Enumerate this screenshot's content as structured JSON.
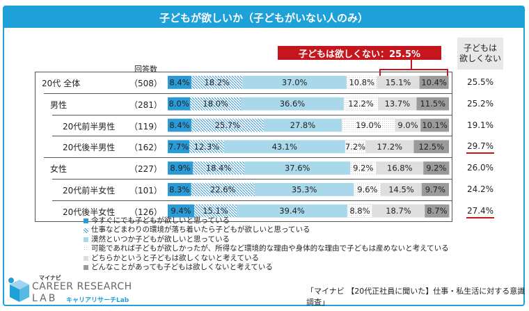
{
  "title": "子どもが欲しいか（子どもがいない人のみ）",
  "callout": "子どもは欲しくない：25.5%",
  "side_header": [
    "子どもは",
    "欲しくない"
  ],
  "respondent_header": "回答数",
  "source": "「マイナビ 【20代正社員に聞いた】仕事・私生活に対する意識調査」",
  "logo": {
    "brand": "マイナビ",
    "main": "CAREER RESEARCH",
    "lab": "LAB",
    "sub": "キャリアリサーチLab"
  },
  "colors": {
    "title_bg": "#1ea0d8",
    "callout": "#c4161c",
    "c1": "#2a9bd6",
    "c2": "#8cc8e8",
    "c3": "#a9d8ea",
    "c4": "#ffffff",
    "c5": "#dedede",
    "c6": "#9a9a9a"
  },
  "chart_data": {
    "type": "bar",
    "stacked": true,
    "orientation": "horizontal",
    "title": "子どもが欲しいか（子どもがいない人のみ）",
    "categories": [
      "20代 全体",
      "男性",
      "20代前半男性",
      "20代後半男性",
      "女性",
      "20代前半女性",
      "20代後半女性"
    ],
    "counts": [
      "（508）",
      "（281）",
      "（119）",
      "（162）",
      "（227）",
      "（101）",
      "（126）"
    ],
    "not_want": [
      "25.5%",
      "25.2%",
      "19.1%",
      "29.7%",
      "26.0%",
      "24.2%",
      "27.4%"
    ],
    "highlight_not_want": [
      false,
      false,
      false,
      true,
      false,
      false,
      true
    ],
    "series": [
      {
        "name": "今すぐにでも子どもが欲しいと思っている",
        "values": [
          8.4,
          8.0,
          8.4,
          7.7,
          8.9,
          8.3,
          9.4
        ]
      },
      {
        "name": "仕事などまわりの環境が落ち着いたら子どもが欲しいと思っている",
        "values": [
          18.2,
          18.0,
          25.7,
          12.3,
          18.4,
          22.6,
          15.1
        ]
      },
      {
        "name": "漠然といつか子どもが欲しいと思っている",
        "values": [
          37.0,
          36.6,
          27.8,
          43.1,
          37.6,
          35.3,
          39.4
        ]
      },
      {
        "name": "可能であれば子どもが欲しかったが、所得など環境的な理由や身体的な理由で子どもは産めないと考えている",
        "values": [
          10.8,
          12.2,
          19.0,
          7.2,
          9.2,
          9.6,
          8.8
        ]
      },
      {
        "name": "どちらかというと子どもは欲しくないと考えている",
        "values": [
          15.1,
          13.7,
          9.0,
          17.2,
          16.8,
          14.5,
          18.7
        ]
      },
      {
        "name": "どんなことがあっても子どもは欲しくないと考えている",
        "values": [
          10.4,
          11.5,
          10.1,
          12.5,
          9.2,
          9.7,
          8.7
        ]
      }
    ]
  }
}
